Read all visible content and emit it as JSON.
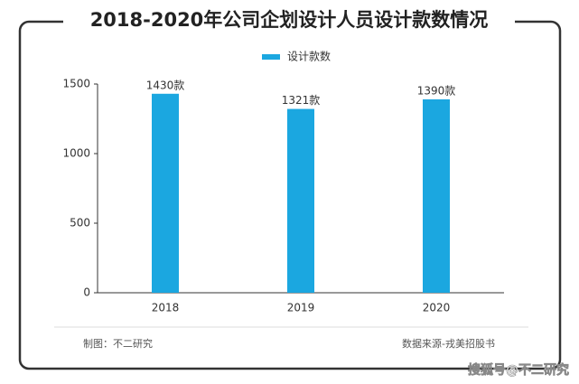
{
  "chart_data": {
    "type": "bar",
    "title": "2018-2020年公司企划设计人员设计款数情况",
    "categories": [
      "2018",
      "2019",
      "2020"
    ],
    "series": [
      {
        "name": "设计款数",
        "color": "#1ba7e0",
        "values": [
          1430,
          1321,
          1390
        ],
        "value_labels": [
          "1430款",
          "1321款",
          "1390款"
        ]
      }
    ],
    "ylim": [
      0,
      1500
    ],
    "yticks": [
      0,
      500,
      1000,
      1500
    ],
    "grid": false,
    "footer_left": "制图：不二研究",
    "footer_right": "数据来源-戎美招股书",
    "watermark": "搜狐号@不二研究"
  }
}
